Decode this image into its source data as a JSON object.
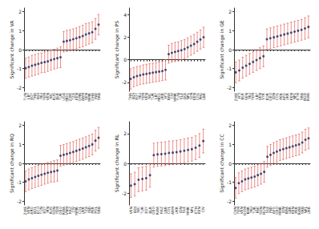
{
  "chart_data": [
    {
      "type": "scatter",
      "y_label": "Significant change in VA",
      "color": "#1c2b5a",
      "marker": "circle",
      "grid": false,
      "categories": [
        "TUN",
        "LBY",
        "EGY",
        "THA",
        "BDI",
        "MLI",
        "YEM",
        "VEN",
        "NIC",
        "RUS",
        "BLR",
        "TUR",
        "UGA",
        "MDG",
        "ZWE",
        "TZA",
        "KEN",
        "GMB",
        "ARM",
        "SEN",
        "MMR",
        "GHA",
        "IND",
        "SRB"
      ],
      "values": [
        -0.98,
        -0.92,
        -0.85,
        -0.8,
        -0.75,
        -0.7,
        -0.66,
        -0.62,
        -0.55,
        -0.5,
        -0.45,
        -0.4,
        0.42,
        0.46,
        0.5,
        0.55,
        0.6,
        0.66,
        0.72,
        0.8,
        0.86,
        0.92,
        1.1,
        1.32
      ],
      "lower": [
        -1.52,
        -1.45,
        -1.4,
        -1.35,
        -1.3,
        -1.22,
        -1.2,
        -1.15,
        -1.08,
        -1.02,
        -0.98,
        -0.95,
        -0.12,
        -0.1,
        -0.05,
        0.0,
        0.05,
        0.1,
        0.15,
        0.22,
        0.3,
        0.36,
        0.55,
        0.78
      ],
      "upper": [
        -0.44,
        -0.39,
        -0.3,
        -0.25,
        -0.2,
        -0.18,
        -0.12,
        -0.09,
        -0.02,
        0.02,
        0.08,
        0.15,
        0.96,
        1.02,
        1.05,
        1.1,
        1.15,
        1.22,
        1.29,
        1.38,
        1.42,
        1.48,
        1.65,
        1.86
      ],
      "ylim": [
        -2.2,
        2.2
      ],
      "yticks": [
        -2,
        -1,
        0,
        1,
        2
      ]
    },
    {
      "type": "scatter",
      "y_label": "Significant change in PS",
      "color": "#1c2b5a",
      "marker": "circle",
      "grid": false,
      "categories": [
        "THA",
        "BDI",
        "EGY",
        "MLI",
        "YEM",
        "VEN",
        "NIC",
        "TUR",
        "LBY",
        "MDG",
        "UKR",
        "HTI",
        "BRA",
        "CIV",
        "MMR",
        "TUN",
        "SLE",
        "LKA",
        "NPL",
        "GIN",
        "KEN",
        "COL",
        "PHL",
        "LBR"
      ],
      "values": [
        -1.7,
        -1.55,
        -1.45,
        -1.38,
        -1.3,
        -1.25,
        -1.2,
        -1.15,
        -1.1,
        -1.05,
        -1.0,
        -0.9,
        0.5,
        0.62,
        0.7,
        0.78,
        0.85,
        0.95,
        1.1,
        1.25,
        1.4,
        1.6,
        1.8,
        2.0
      ],
      "lower": [
        -2.6,
        -2.4,
        -2.3,
        -2.2,
        -2.15,
        -2.1,
        -2.05,
        -2.0,
        -1.95,
        -1.9,
        -1.85,
        -1.8,
        -0.3,
        -0.2,
        -0.15,
        -0.05,
        0.0,
        0.1,
        0.25,
        0.4,
        0.55,
        0.75,
        0.95,
        1.1
      ],
      "upper": [
        -0.8,
        -0.7,
        -0.6,
        -0.55,
        -0.45,
        -0.4,
        -0.35,
        -0.3,
        -0.25,
        -0.2,
        -0.15,
        0.0,
        1.3,
        1.45,
        1.55,
        1.6,
        1.7,
        1.8,
        1.95,
        2.1,
        2.25,
        2.45,
        2.65,
        2.9
      ],
      "ylim": [
        -2.8,
        4.6
      ],
      "yticks": [
        -2,
        0,
        2,
        4
      ]
    },
    {
      "type": "scatter",
      "y_label": "Significant change in GE",
      "color": "#1c2b5a",
      "marker": "circle",
      "grid": false,
      "categories": [
        "ZWE",
        "HTI",
        "BLR",
        "SEN",
        "MLI",
        "YEM",
        "LBY",
        "VEN",
        "SYR",
        "KOR",
        "GEO",
        "IDN",
        "COL",
        "PER",
        "AFG",
        "UKR",
        "KEN",
        "NPL",
        "ETH",
        "SRB",
        "BGD",
        "RWA"
      ],
      "values": [
        -1.2,
        -1.1,
        -0.95,
        -0.85,
        -0.75,
        -0.65,
        -0.55,
        -0.45,
        -0.35,
        0.55,
        0.6,
        0.65,
        0.7,
        0.75,
        0.8,
        0.85,
        0.9,
        0.95,
        1.0,
        1.05,
        1.12,
        1.2
      ],
      "lower": [
        -1.75,
        -1.65,
        -1.5,
        -1.4,
        -1.3,
        -1.2,
        -1.1,
        -1.0,
        -0.9,
        0.0,
        0.05,
        0.1,
        0.15,
        0.2,
        0.25,
        0.3,
        0.35,
        0.4,
        0.45,
        0.5,
        0.55,
        0.62
      ],
      "upper": [
        -0.65,
        -0.55,
        -0.4,
        -0.3,
        -0.2,
        -0.1,
        0.0,
        0.1,
        0.2,
        1.1,
        1.15,
        1.2,
        1.25,
        1.3,
        1.35,
        1.4,
        1.45,
        1.5,
        1.55,
        1.6,
        1.69,
        1.78
      ],
      "ylim": [
        -2.2,
        2.2
      ],
      "yticks": [
        -2,
        -1,
        0,
        1,
        2
      ]
    },
    {
      "type": "scatter",
      "y_label": "Significant change in RQ",
      "color": "#1c2b5a",
      "marker": "circle",
      "grid": false,
      "categories": [
        "ZWE",
        "VEN",
        "ARG",
        "BOL",
        "ECU",
        "TUN",
        "EGY",
        "IRN",
        "RUS",
        "SDN",
        "YEM",
        "GEO",
        "RWA",
        "VNM",
        "KAZ",
        "CIV",
        "MMR",
        "COL",
        "UKR",
        "TZA",
        "IND",
        "PER",
        "POL",
        "SRB"
      ],
      "values": [
        -0.95,
        -0.85,
        -0.78,
        -0.72,
        -0.66,
        -0.6,
        -0.55,
        -0.5,
        -0.46,
        -0.42,
        -0.38,
        0.4,
        0.45,
        0.5,
        0.55,
        0.6,
        0.66,
        0.72,
        0.78,
        0.85,
        0.92,
        1.0,
        1.2,
        1.35
      ],
      "lower": [
        -1.5,
        -1.4,
        -1.33,
        -1.28,
        -1.22,
        -1.16,
        -1.1,
        -1.05,
        -1.0,
        -0.98,
        -0.94,
        -0.15,
        -0.1,
        -0.05,
        0.0,
        0.05,
        0.1,
        0.16,
        0.22,
        0.3,
        0.36,
        0.45,
        0.65,
        0.8
      ],
      "upper": [
        -0.4,
        -0.3,
        -0.23,
        -0.16,
        -0.1,
        -0.04,
        0.0,
        0.05,
        0.08,
        0.14,
        0.18,
        0.95,
        1.0,
        1.05,
        1.1,
        1.15,
        1.22,
        1.28,
        1.34,
        1.4,
        1.48,
        1.55,
        1.75,
        1.9
      ],
      "ylim": [
        -2.2,
        2.2
      ],
      "yticks": [
        -2,
        -1,
        0,
        1,
        2
      ]
    },
    {
      "type": "scatter",
      "y_label": "Significant change in RL",
      "color": "#1c2b5a",
      "marker": "circle",
      "grid": false,
      "categories": [
        "VEN",
        "BDI",
        "NIC",
        "TUR",
        "EGY",
        "BLR",
        "GEO",
        "RWA",
        "KAZ",
        "LBR",
        "COL",
        "ARM",
        "UKR",
        "IDN",
        "SLE",
        "MMR",
        "NPL",
        "ETH",
        "KEN",
        "CIV"
      ],
      "values": [
        -1.5,
        -1.4,
        -1.1,
        -1.05,
        -1.0,
        -0.8,
        0.55,
        0.6,
        0.62,
        0.65,
        0.7,
        0.72,
        0.75,
        0.8,
        0.85,
        0.9,
        0.95,
        1.05,
        1.2,
        1.5
      ],
      "lower": [
        -2.3,
        -2.2,
        -1.9,
        -1.85,
        -1.8,
        -1.6,
        -0.25,
        -0.2,
        -0.18,
        -0.15,
        -0.1,
        -0.08,
        -0.05,
        0.0,
        0.05,
        0.1,
        0.15,
        0.25,
        0.4,
        0.7
      ],
      "upper": [
        -0.7,
        -0.6,
        -0.3,
        -0.25,
        -0.2,
        0.0,
        1.35,
        1.4,
        1.42,
        1.45,
        1.5,
        1.52,
        1.55,
        1.6,
        1.65,
        1.7,
        1.75,
        1.85,
        2.0,
        2.3
      ],
      "ylim": [
        -2.8,
        2.8
      ],
      "yticks": [
        -2,
        0,
        2
      ]
    },
    {
      "type": "scatter",
      "y_label": "Significant change in CC",
      "color": "#1c2b5a",
      "marker": "circle",
      "grid": false,
      "categories": [
        "CHN",
        "YEM",
        "VEN",
        "DOM",
        "BHR",
        "MLI",
        "TUR",
        "PAK",
        "SDN",
        "HUN",
        "SLE",
        "IND",
        "AFG",
        "GEO",
        "MMR",
        "IDN",
        "BRA",
        "LBR",
        "KEN",
        "PER",
        "RWA",
        "SRB",
        "NPL",
        "UKR"
      ],
      "values": [
        -1.3,
        -1.05,
        -0.95,
        -0.85,
        -0.8,
        -0.75,
        -0.7,
        -0.62,
        -0.55,
        -0.45,
        0.35,
        0.45,
        0.55,
        0.62,
        0.7,
        0.75,
        0.8,
        0.85,
        0.9,
        0.95,
        1.0,
        1.1,
        1.25,
        1.32
      ],
      "lower": [
        -1.85,
        -1.6,
        -1.5,
        -1.4,
        -1.35,
        -1.3,
        -1.25,
        -1.18,
        -1.1,
        -1.0,
        -0.2,
        -0.1,
        0.0,
        0.07,
        0.15,
        0.2,
        0.25,
        0.3,
        0.35,
        0.4,
        0.45,
        0.55,
        0.7,
        0.77
      ],
      "upper": [
        -0.75,
        -0.5,
        -0.4,
        -0.3,
        -0.25,
        -0.2,
        -0.15,
        -0.06,
        0.0,
        0.1,
        0.9,
        1.0,
        1.1,
        1.17,
        1.25,
        1.3,
        1.35,
        1.4,
        1.45,
        1.5,
        1.55,
        1.65,
        1.8,
        1.87
      ],
      "ylim": [
        -2.2,
        2.2
      ],
      "yticks": [
        -2,
        -1,
        0,
        1,
        2
      ]
    }
  ]
}
